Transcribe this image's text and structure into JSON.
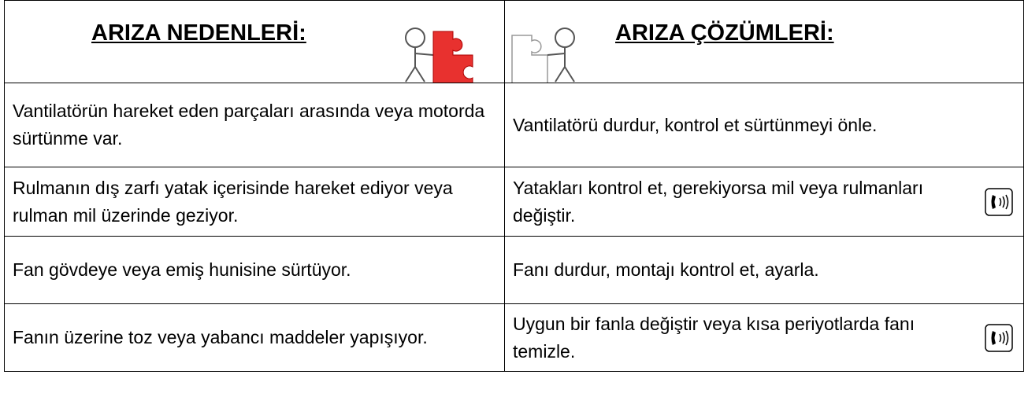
{
  "header": {
    "left": "ARIZA NEDENLERİ:",
    "right": "ARIZA ÇÖZÜMLERİ:"
  },
  "table": {
    "rows": [
      [
        "Vantilatörün hareket eden parçaları arasında veya motorda sürtünme var.",
        "Vantilatörü durdur, kontrol et sürtünmeyi önle."
      ],
      [
        "Rulmanın dış zarfı yatak içerisinde hareket ediyor veya rulman mil üzerinde geziyor.",
        "Yatakları kontrol et, gerekiyorsa mil veya rulmanları değiştir."
      ],
      [
        "Fan gövdeye veya emiş hunisine sürtüyor.",
        "Fanı durdur, montajı kontrol et, ayarla."
      ],
      [
        "Fanın üzerine toz veya yabancı maddeler yapışıyor.",
        "Uygun bir fanla değiştir veya kısa periyotlarda fanı temizle."
      ]
    ]
  }
}
